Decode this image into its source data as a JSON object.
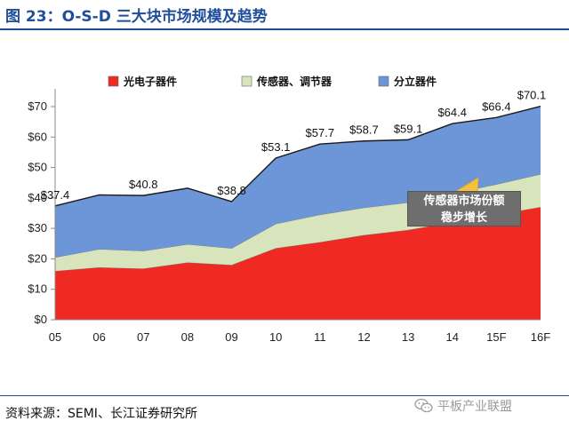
{
  "figure": {
    "title": "图 23：O-S-D 三大块市场规模及趋势",
    "source": "资料来源：SEMI、长江证券研究所",
    "watermark": "平板产业联盟"
  },
  "colors": {
    "title": "#1f4e9a",
    "series_optoelectronics": "#ee2a23",
    "series_sensors": "#d8e4bc",
    "series_discretes": "#6d96d8",
    "callout_arrow": "#f5c040",
    "callout_box": "#6e6e6e"
  },
  "chart_data": {
    "type": "area",
    "stacked": true,
    "categories": [
      "05",
      "06",
      "07",
      "08",
      "09",
      "10",
      "11",
      "12",
      "13",
      "14",
      "15F",
      "16F"
    ],
    "series": [
      {
        "name": "光电子器件",
        "values": [
          16.0,
          17.2,
          16.8,
          18.8,
          18.0,
          23.5,
          25.5,
          27.8,
          29.5,
          32.0,
          34.5,
          37.0
        ]
      },
      {
        "name": "传感器、调节器",
        "values": [
          4.5,
          6.0,
          5.8,
          6.0,
          5.5,
          8.0,
          9.0,
          9.0,
          9.0,
          9.5,
          10.0,
          10.8
        ]
      },
      {
        "name": "分立器件",
        "values": [
          16.9,
          17.8,
          18.2,
          18.4,
          15.3,
          21.6,
          23.2,
          21.9,
          20.6,
          22.9,
          21.9,
          22.3
        ]
      }
    ],
    "totals": [
      37.4,
      41.0,
      40.8,
      43.2,
      38.8,
      53.1,
      57.7,
      58.7,
      59.1,
      64.4,
      66.4,
      70.1
    ],
    "total_labels": [
      {
        "category": "05",
        "text": "$37.4"
      },
      {
        "category": "07",
        "text": "$40.8"
      },
      {
        "category": "09",
        "text": "$38.8"
      },
      {
        "category": "10",
        "text": "$53.1"
      },
      {
        "category": "11",
        "text": "$57.7"
      },
      {
        "category": "12",
        "text": "$58.7"
      },
      {
        "category": "13",
        "text": "$59.1"
      },
      {
        "category": "14",
        "text": "$64.4"
      },
      {
        "category": "15F",
        "text": "$66.4"
      },
      {
        "category": "16F",
        "text": "$70.1"
      }
    ],
    "yticks": [
      "$0",
      "$10",
      "$20",
      "$30",
      "$40",
      "$50",
      "$60",
      "$70"
    ],
    "ylim": [
      0,
      70
    ],
    "legend_position": "top",
    "annotation": {
      "lines": [
        "传感器市场份额",
        "稳步增长"
      ]
    },
    "title": "",
    "xlabel": "",
    "ylabel": ""
  }
}
